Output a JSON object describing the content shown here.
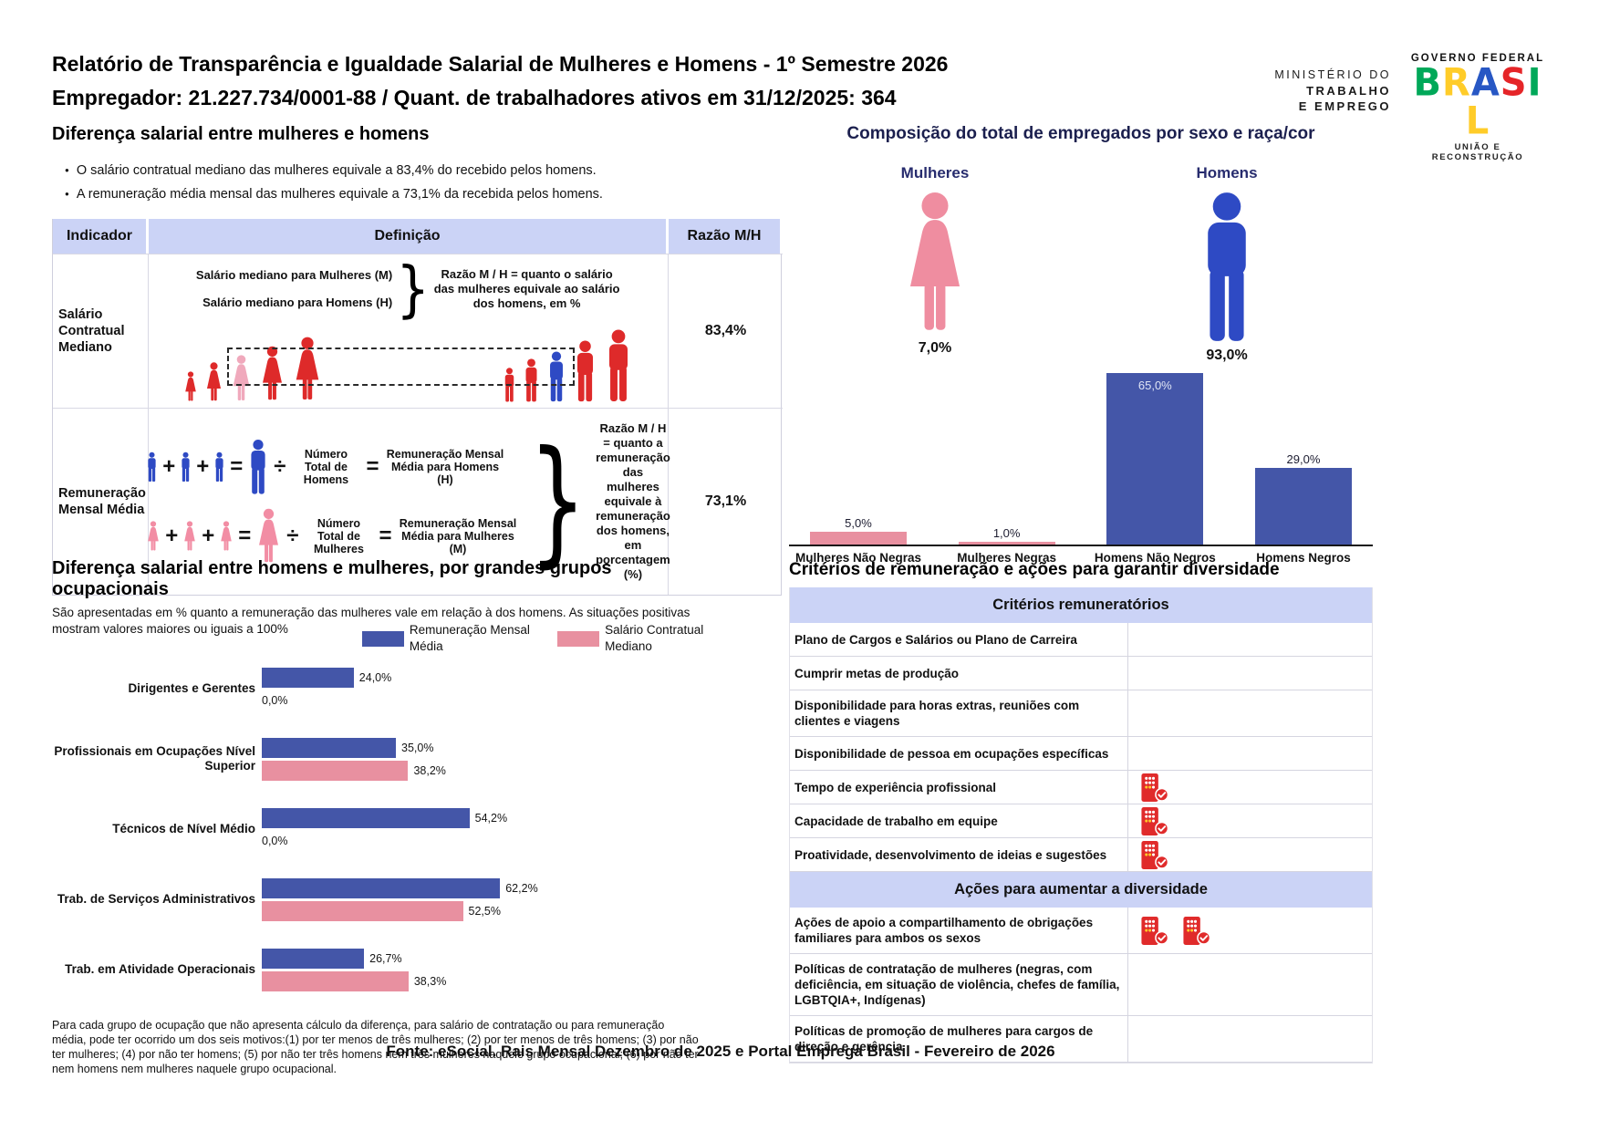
{
  "colors": {
    "lavender_header": "#CBD3F6",
    "bar_blue": "#4456A8",
    "bar_pink": "#E890A0",
    "figure_red": "#DE2A2A",
    "figure_pink": "#F0A9BC",
    "figure_blue": "#2E4AC4",
    "icon_woman_pink": "#EF8DA0",
    "icon_man_blue": "#2E4AC4",
    "navy_label": "#272C6E",
    "criteria_red": "#E02B2B"
  },
  "header": {
    "title_line1": "Relatório de Transparência e Igualdade Salarial de Mulheres e Homens - 1º Semestre 2026",
    "title_line2": "Empregador: 21.227.734/0001-88 / Quant. de trabalhadores ativos em 31/12/2025: 364",
    "ministry": {
      "line1": "MINISTÉRIO DO",
      "line2": "TRABALHO",
      "line3": "E EMPREGO"
    },
    "gov": {
      "top": "GOVERNO FEDERAL",
      "brand_letters": [
        {
          "ch": "B",
          "color": "#00A859"
        },
        {
          "ch": "R",
          "color": "#FFCC29"
        },
        {
          "ch": "A",
          "color": "#2757C4"
        },
        {
          "ch": "S",
          "color": "#E52528"
        },
        {
          "ch": "I",
          "color": "#00A859"
        },
        {
          "ch": "L",
          "color": "#FFCC29"
        }
      ],
      "bottom": "UNIÃO E RECONSTRUÇÃO"
    }
  },
  "salary_gap": {
    "title": "Diferença salarial entre mulheres e homens",
    "bullets": [
      "O salário contratual mediano das mulheres equivale a 83,4% do recebido pelos homens.",
      "A remuneração média mensal das mulheres equivale a 73,1% da recebida pelos homens."
    ],
    "table": {
      "col_indicator": "Indicador",
      "col_definition": "Definição",
      "col_ratio": "Razão M/H",
      "row1": {
        "indicator": "Salário Contratual Mediano",
        "def_line1": "Salário mediano para Mulheres (M)",
        "def_line2": "Salário mediano para Homens (H)",
        "note": "Razão M / H = quanto o salário das mulheres equivale ao salário dos homens, em %",
        "ratio": "83,4%"
      },
      "row2": {
        "indicator": "Remuneração Mensal Média",
        "men_divisor": "Número Total de Homens",
        "men_result": "Remuneração Mensal Média para Homens (H)",
        "women_divisor": "Número Total de Mulheres",
        "women_result": "Remuneração Mensal Média para Mulheres (M)",
        "note": "Razão M / H = quanto a remuneração das mulheres equivale à remuneração dos homens, em porcentagem (%)",
        "ratio": "73,1%"
      }
    }
  },
  "composition": {
    "title": "Composição do total de empregados por sexo e raça/cor",
    "women_label": "Mulheres",
    "women_pct": "7,0%",
    "men_label": "Homens",
    "men_pct": "93,0%",
    "chart_data": {
      "type": "bar",
      "title": "Composição do total de empregados por sexo e raça/cor",
      "categories": [
        "Mulheres Não Negras",
        "Mulheres Negras",
        "Homens Não Negros",
        "Homens Negros"
      ],
      "values": [
        5.0,
        1.0,
        65.0,
        29.0
      ],
      "value_labels": [
        "5,0%",
        "1,0%",
        "65,0%",
        "29,0%"
      ],
      "bar_colors": [
        "#E890A0",
        "#E890A0",
        "#4456A8",
        "#4456A8"
      ],
      "ylim": [
        0,
        100
      ],
      "grid": false
    }
  },
  "occupational": {
    "title": "Diferença salarial entre homens e mulheres, por grandes grupos ocupacionais",
    "subtitle": "São apresentadas em % quanto a remuneração das mulheres vale em relação à dos homens. As situações positivas mostram valores maiores ou iguais a 100%",
    "chart_data": {
      "type": "bar",
      "orientation": "horizontal",
      "categories": [
        "Dirigentes e Gerentes",
        "Profissionais em Ocupações Nível Superior",
        "Técnicos de Nível Médio",
        "Trab. de Serviços Administrativos",
        "Trab. em Atividade Operacionais"
      ],
      "series": [
        {
          "name": "Remuneração Mensal Média",
          "color": "#4456A8",
          "values": [
            24.0,
            35.0,
            54.2,
            62.2,
            26.7
          ],
          "value_labels": [
            "24,0%",
            "35,0%",
            "54,2%",
            "62,2%",
            "26,7%"
          ]
        },
        {
          "name": "Salário Contratual Mediano",
          "color": "#E890A0",
          "values": [
            0.0,
            38.2,
            0.0,
            52.5,
            38.3
          ],
          "value_labels": [
            "0,0%",
            "38,2%",
            "0,0%",
            "52,5%",
            "38,3%"
          ]
        }
      ],
      "xlim": [
        0,
        100
      ],
      "legend_position": "top-right",
      "grid": false
    },
    "footnote": "Para cada grupo de ocupação que não apresenta cálculo da diferença, para salário de contratação ou para remuneração média, pode ter ocorrido um dos seis motivos:(1) por ter menos de três mulheres; (2) por ter menos de três homens; (3) por não ter mulheres; (4) por não ter homens; (5) por não ter três homens nem três mulheres naquele grupo ocupacional; (6) por não ter nem homens nem mulheres naquele grupo ocupacional."
  },
  "criteria": {
    "title": "Critérios de remuneração e ações para garantir diversidade",
    "section1_header": "Critérios remuneratórios",
    "rows1": [
      {
        "label": "Plano de Cargos e Salários ou Plano de Carreira",
        "icons": 0
      },
      {
        "label": "Cumprir metas de produção",
        "icons": 0
      },
      {
        "label": "Disponibilidade para horas extras, reuniões com clientes e viagens",
        "icons": 0
      },
      {
        "label": "Disponibilidade de pessoa em ocupações específicas",
        "icons": 0
      },
      {
        "label": "Tempo de experiência profissional",
        "icons": 1
      },
      {
        "label": "Capacidade de trabalho em equipe",
        "icons": 1
      },
      {
        "label": "Proatividade, desenvolvimento de ideias e sugestões",
        "icons": 1
      }
    ],
    "section2_header": "Ações para aumentar a diversidade",
    "rows2": [
      {
        "label": "Ações de apoio a compartilhamento de obrigações familiares para ambos os sexos",
        "icons": 2
      },
      {
        "label": "Políticas de contratação de mulheres (negras, com deficiência, em situação de violência, chefes de família, LGBTQIA+, Indígenas)",
        "icons": 0
      },
      {
        "label": "Políticas de promoção de mulheres para cargos de direção e gerência",
        "icons": 0
      }
    ]
  },
  "footer": {
    "source": "Fonte: eSocial. Rais Mensal Dezembro de 2025 e Portal Emprega Brasil - Fevereiro de 2026"
  }
}
